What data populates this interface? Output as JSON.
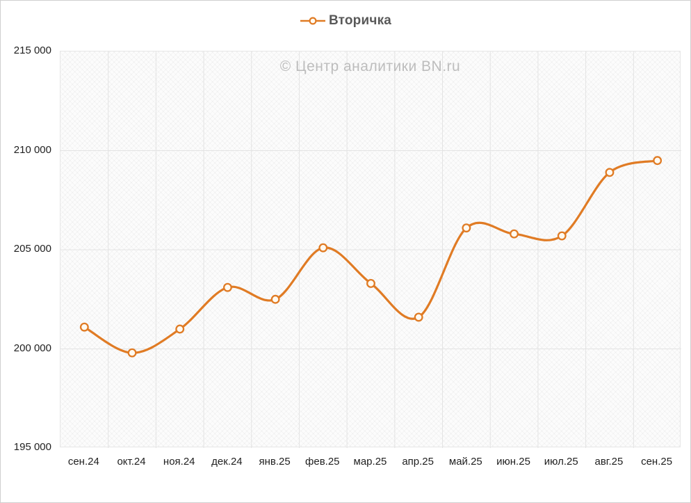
{
  "legend": {
    "label": "Вторичка",
    "icon": "line-with-circle-marker"
  },
  "watermark": "© Центр аналитики BN.ru",
  "colors": {
    "line": "#e07b24",
    "marker_fill": "#fffaf1",
    "legend_text": "#595959",
    "watermark_text": "#bdbdbd",
    "grid": "#e3e3e3",
    "axis_text": "#1f1f1f"
  },
  "chart_data": {
    "type": "line",
    "title": "Вторичка",
    "smooth": true,
    "legend_position": "top",
    "grid": true,
    "categories": [
      "сен.24",
      "окт.24",
      "ноя.24",
      "дек.24",
      "янв.25",
      "фев.25",
      "мар.25",
      "апр.25",
      "май.25",
      "июн.25",
      "июл.25",
      "авг.25",
      "сен.25"
    ],
    "values": [
      201100,
      199800,
      201000,
      203100,
      202500,
      205100,
      203300,
      201600,
      206100,
      205800,
      205700,
      208900,
      209500
    ],
    "ylabel": "",
    "xlabel": "",
    "ylim": [
      195000,
      215000
    ],
    "ytick_step": 5000,
    "yticks": [
      "215 000",
      "210 000",
      "205 000",
      "200 000",
      "195 000"
    ]
  }
}
